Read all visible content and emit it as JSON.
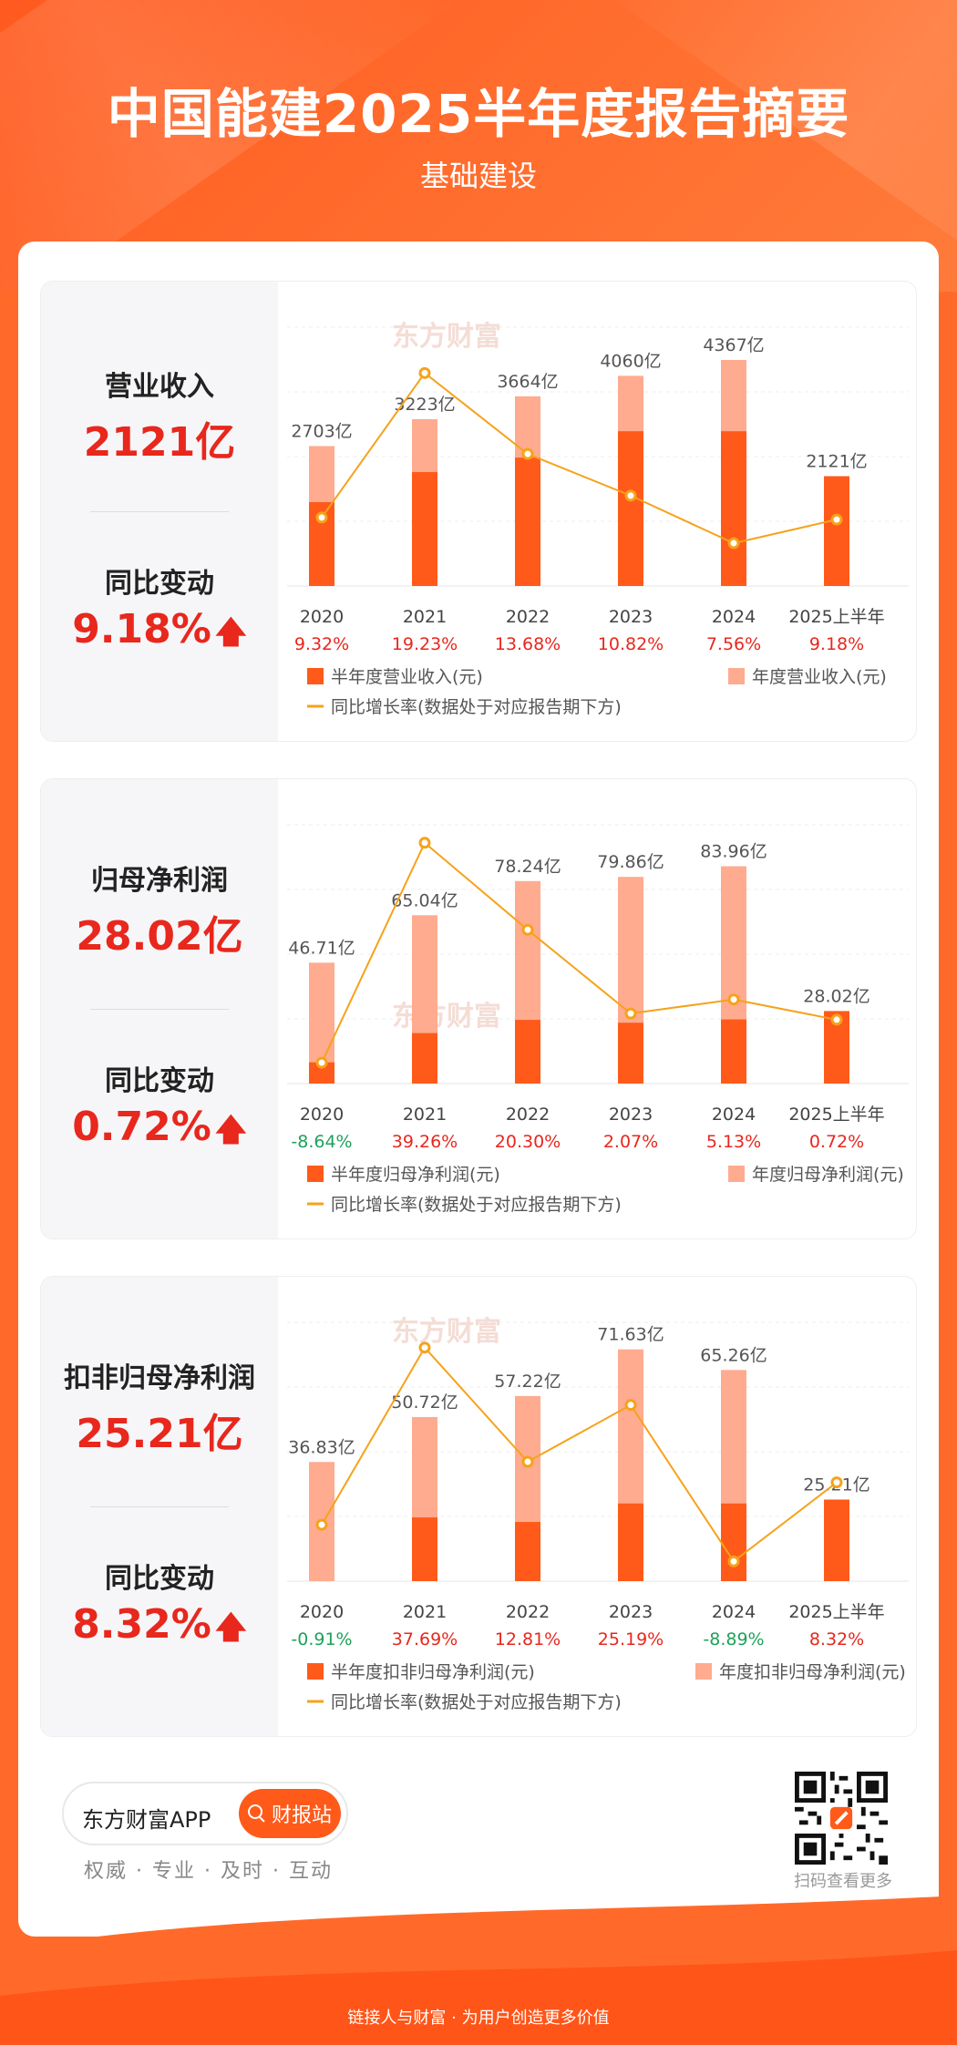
{
  "header": {
    "title": "中国能建2025半年度报告摘要",
    "subtitle": "基础建设"
  },
  "watermark": "东方财富",
  "panels": [
    {
      "metric_label": "营业收入",
      "metric_value": "2121亿",
      "change_label": "同比变动",
      "change_value": "9.18%",
      "legend_half": "半年度营业收入(元)",
      "legend_annual": "年度营业收入(元)",
      "legend_line": "同比增长率(数据处于对应报告期下方)"
    },
    {
      "metric_label": "归母净利润",
      "metric_value": "28.02亿",
      "change_label": "同比变动",
      "change_value": "0.72%",
      "legend_half": "半年度归母净利润(元)",
      "legend_annual": "年度归母净利润(元)",
      "legend_line": "同比增长率(数据处于对应报告期下方)"
    },
    {
      "metric_label": "扣非归母净利润",
      "metric_value": "25.21亿",
      "change_label": "同比变动",
      "change_value": "8.32%",
      "legend_half": "半年度扣非归母净利润(元)",
      "legend_annual": "年度扣非归母净利润(元)",
      "legend_line": "同比增长率(数据处于对应报告期下方)"
    }
  ],
  "chart_data": [
    {
      "type": "bar",
      "categories": [
        "2020",
        "2021",
        "2022",
        "2023",
        "2024",
        "2025上半年"
      ],
      "series": [
        {
          "name": "半年度营业收入(元)",
          "values": [
            1620,
            2200,
            2480,
            2990,
            2990,
            2121
          ]
        },
        {
          "name": "年度营业收入(元)",
          "values": [
            2703,
            3223,
            3664,
            4060,
            4367,
            null
          ]
        },
        {
          "name": "同比增长率(数据处于对应报告期下方)",
          "type": "line",
          "values": [
            9.32,
            19.23,
            13.68,
            10.82,
            7.56,
            9.18
          ]
        }
      ],
      "bar_labels": [
        "2703亿",
        "3223亿",
        "3664亿",
        "4060亿",
        "4367亿",
        "2121亿"
      ],
      "rate_labels": [
        "9.32%",
        "19.23%",
        "13.68%",
        "10.82%",
        "7.56%",
        "9.18%"
      ],
      "ylim": [
        0,
        5000
      ],
      "rate_range": [
        5,
        22
      ],
      "grid": true,
      "colors": {
        "half": "#ff5a1a",
        "annual": "#ffab8f",
        "line": "#f6a21a",
        "positive": "#e8271d",
        "negative": "#1fa15b"
      }
    },
    {
      "type": "bar",
      "categories": [
        "2020",
        "2021",
        "2022",
        "2023",
        "2024",
        "2025上半年"
      ],
      "series": [
        {
          "name": "半年度归母净利润(元)",
          "values": [
            8.2,
            19.5,
            24.6,
            23.5,
            24.8,
            28.02
          ]
        },
        {
          "name": "年度归母净利润(元)",
          "values": [
            46.71,
            65.04,
            78.24,
            79.86,
            83.96,
            null
          ]
        },
        {
          "name": "同比增长率(数据处于对应报告期下方)",
          "type": "line",
          "values": [
            -8.64,
            39.26,
            20.3,
            2.07,
            5.13,
            0.72
          ]
        }
      ],
      "bar_labels": [
        "46.71亿",
        "65.04亿",
        "78.24亿",
        "79.86亿",
        "83.96亿",
        "28.02亿"
      ],
      "rate_labels": [
        "-8.64%",
        "39.26%",
        "20.30%",
        "2.07%",
        "5.13%",
        "0.72%"
      ],
      "ylim": [
        0,
        100
      ],
      "rate_range": [
        -12,
        42
      ],
      "grid": true,
      "colors": {
        "half": "#ff5a1a",
        "annual": "#ffab8f",
        "line": "#f6a21a",
        "positive": "#e8271d",
        "negative": "#1fa15b"
      }
    },
    {
      "type": "bar",
      "categories": [
        "2020",
        "2021",
        "2022",
        "2023",
        "2024",
        "2025上半年"
      ],
      "series": [
        {
          "name": "半年度扣非归母净利润(元)",
          "values": [
            0,
            19.7,
            18.3,
            24.0,
            24.0,
            25.21
          ]
        },
        {
          "name": "年度扣非归母净利润(元)",
          "values": [
            36.83,
            50.72,
            57.22,
            71.63,
            65.26,
            null
          ]
        },
        {
          "name": "同比增长率(数据处于对应报告期下方)",
          "type": "line",
          "values": [
            -0.91,
            37.69,
            12.81,
            25.19,
            -8.89,
            8.32
          ]
        }
      ],
      "bar_labels": [
        "36.83亿",
        "50.72亿",
        "57.22亿",
        "71.63亿",
        "65.26亿",
        "25.21亿"
      ],
      "rate_labels": [
        "-0.91%",
        "37.69%",
        "12.81%",
        "25.19%",
        "-8.89%",
        "8.32%"
      ],
      "ylim": [
        0,
        80
      ],
      "rate_range": [
        -12,
        42
      ],
      "grid": true,
      "colors": {
        "half": "#ff5a1a",
        "annual": "#ffab8f",
        "line": "#f6a21a",
        "positive": "#e8271d",
        "negative": "#1fa15b"
      }
    }
  ],
  "footer": {
    "app_name": "东方财富APP",
    "button_label": "财报站",
    "slogan": "权威 · 专业 · 及时 · 互动",
    "qr_caption": "扫码查看更多",
    "tagline": "链接人与财富 · 为用户创造更多价值"
  }
}
